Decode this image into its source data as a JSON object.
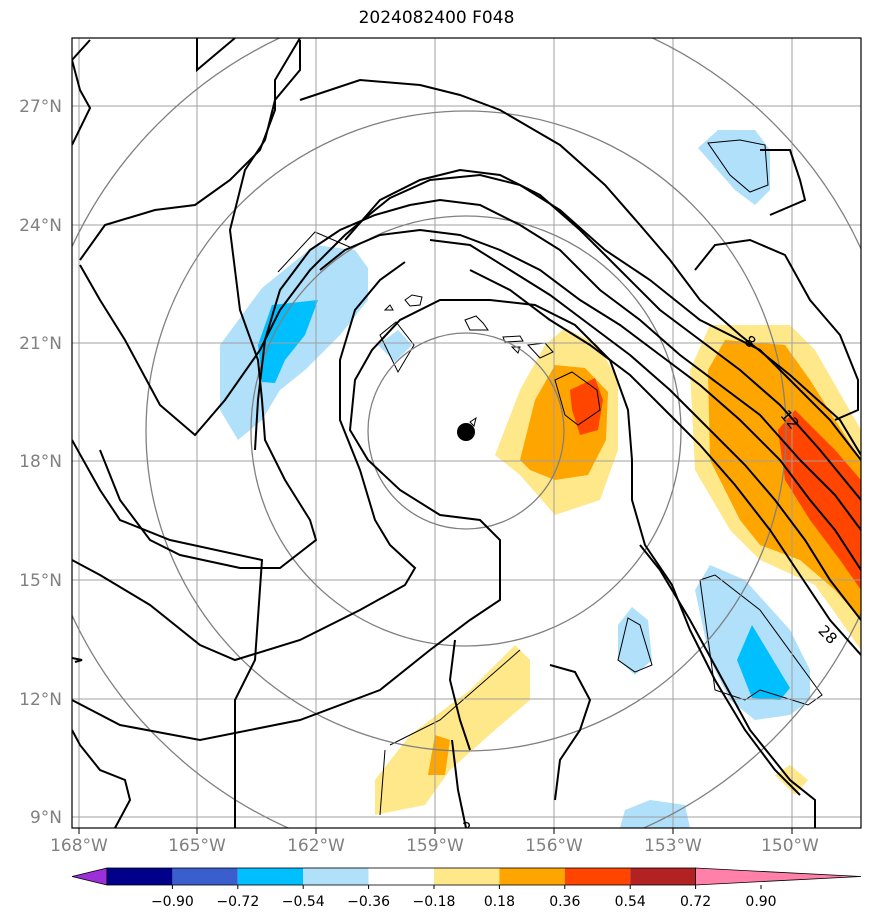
{
  "title": "2024082400 F048",
  "map": {
    "lon_labels": [
      "168°W",
      "165°W",
      "162°W",
      "159°W",
      "156°W",
      "153°W",
      "150°W"
    ],
    "lat_labels": [
      "27°N",
      "24°N",
      "21°N",
      "18°N",
      "15°N",
      "12°N",
      "9°N"
    ],
    "contour_labels": [
      "8",
      "12",
      "28",
      "2"
    ],
    "storm_center_marker": "storm-center-dot"
  },
  "colorbar": {
    "tick_labels": [
      "−0.90",
      "−0.72",
      "−0.54",
      "−0.36",
      "−0.18",
      "0.18",
      "0.36",
      "0.54",
      "0.72",
      "0.90"
    ],
    "colors": [
      "#9b30d9",
      "#00008b",
      "#3a5fcd",
      "#00bfff",
      "#b0e0fa",
      "#ffffff",
      "#ffe88a",
      "#ffa500",
      "#ff4500",
      "#b22222",
      "#ff80a8"
    ]
  },
  "colors": {
    "grid": "#a0a0a0",
    "range_rings": "#808080",
    "contours": "#000000"
  }
}
